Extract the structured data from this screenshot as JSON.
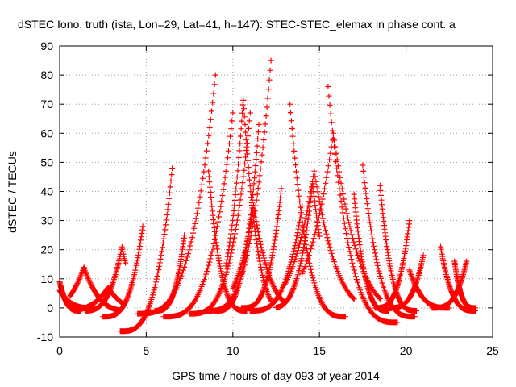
{
  "chart_data": {
    "type": "scatter",
    "title": "dSTEC Iono. truth (ista, Lon=29, Lat=41, h=147): STEC-STEC_elemax in phase cont. a",
    "xlabel": "GPS time / hours of day 093 of year 2014",
    "ylabel": "dSTEC  / TECUs",
    "xlim": [
      0,
      25
    ],
    "ylim": [
      -10,
      90
    ],
    "xticks": [
      0,
      5,
      10,
      15,
      20,
      25
    ],
    "yticks": [
      -10,
      0,
      10,
      20,
      30,
      40,
      50,
      60,
      70,
      80,
      90
    ],
    "grid": true,
    "marker": "+",
    "color": "#ff0000",
    "arcs": [
      {
        "start": 0.0,
        "end": 1.2,
        "peak_time": 0.0,
        "peak": 9,
        "min": -1
      },
      {
        "start": 0.0,
        "end": 2.0,
        "peak_time": 0.0,
        "peak": 6,
        "min": 0
      },
      {
        "start": 0.6,
        "end": 3.4,
        "peak_time": 1.4,
        "peak": 14,
        "min": -1
      },
      {
        "start": 0.8,
        "end": 3.6,
        "peak_time": 2.8,
        "peak": 7,
        "min": -1
      },
      {
        "start": 1.5,
        "end": 3.8,
        "peak_time": 3.6,
        "peak": 21,
        "min": -1
      },
      {
        "start": 3.5,
        "end": 6.5,
        "peak_time": 6.5,
        "peak": 48,
        "min": -8
      },
      {
        "start": 2.5,
        "end": 4.8,
        "peak_time": 4.8,
        "peak": 28,
        "min": -3
      },
      {
        "start": 4.5,
        "end": 9.0,
        "peak_time": 9.0,
        "peak": 80,
        "min": -2
      },
      {
        "start": 5.5,
        "end": 7.2,
        "peak_time": 7.2,
        "peak": 25,
        "min": -1
      },
      {
        "start": 6.0,
        "end": 10.0,
        "peak_time": 10.0,
        "peak": 67,
        "min": -3
      },
      {
        "start": 7.5,
        "end": 11.0,
        "peak_time": 11.0,
        "peak": 67,
        "min": -2
      },
      {
        "start": 8.5,
        "end": 12.2,
        "peak_time": 12.2,
        "peak": 85,
        "min": -1
      },
      {
        "start": 9.0,
        "end": 11.5,
        "peak_time": 11.5,
        "peak": 63,
        "min": -1
      },
      {
        "start": 10.5,
        "end": 12.8,
        "peak_time": 12.8,
        "peak": 41,
        "min": 0
      },
      {
        "start": 8.6,
        "end": 10.8,
        "peak_time": 8.6,
        "peak": 47,
        "min": -1
      },
      {
        "start": 9.6,
        "end": 12.2,
        "peak_time": 10.6,
        "peak": 72,
        "min": -1
      },
      {
        "start": 10.0,
        "end": 13.0,
        "peak_time": 11.2,
        "peak": 35,
        "min": 0
      },
      {
        "start": 13.3,
        "end": 16.5,
        "peak_time": 13.3,
        "peak": 70,
        "min": -3
      },
      {
        "start": 11.0,
        "end": 14.0,
        "peak_time": 14.0,
        "peak": 35,
        "min": -1
      },
      {
        "start": 12.5,
        "end": 15.0,
        "peak_time": 14.6,
        "peak": 43,
        "min": 0
      },
      {
        "start": 15.5,
        "end": 19.5,
        "peak_time": 15.5,
        "peak": 76,
        "min": -5
      },
      {
        "start": 17.5,
        "end": 20.5,
        "peak_time": 17.5,
        "peak": 49,
        "min": -3
      },
      {
        "start": 17.0,
        "end": 19.0,
        "peak_time": 17.0,
        "peak": 39,
        "min": -1
      },
      {
        "start": 18.5,
        "end": 20.6,
        "peak_time": 18.5,
        "peak": 42,
        "min": -1
      },
      {
        "start": 18.2,
        "end": 20.2,
        "peak_time": 20.2,
        "peak": 30,
        "min": 0
      },
      {
        "start": 19.0,
        "end": 21.0,
        "peak_time": 21.0,
        "peak": 18,
        "min": 0
      },
      {
        "start": 20.2,
        "end": 22.5,
        "peak_time": 20.2,
        "peak": 13,
        "min": 0
      },
      {
        "start": 22.0,
        "end": 24.0,
        "peak_time": 22.0,
        "peak": 21,
        "min": -1
      },
      {
        "start": 21.5,
        "end": 23.5,
        "peak_time": 23.5,
        "peak": 16,
        "min": 0
      },
      {
        "start": 22.8,
        "end": 24.0,
        "peak_time": 22.8,
        "peak": 16,
        "min": 0
      },
      {
        "start": 13.0,
        "end": 17.0,
        "peak_time": 14.7,
        "peak": 47,
        "min": 0
      },
      {
        "start": 14.0,
        "end": 18.5,
        "peak_time": 15.8,
        "peak": 60,
        "min": 0
      }
    ]
  }
}
